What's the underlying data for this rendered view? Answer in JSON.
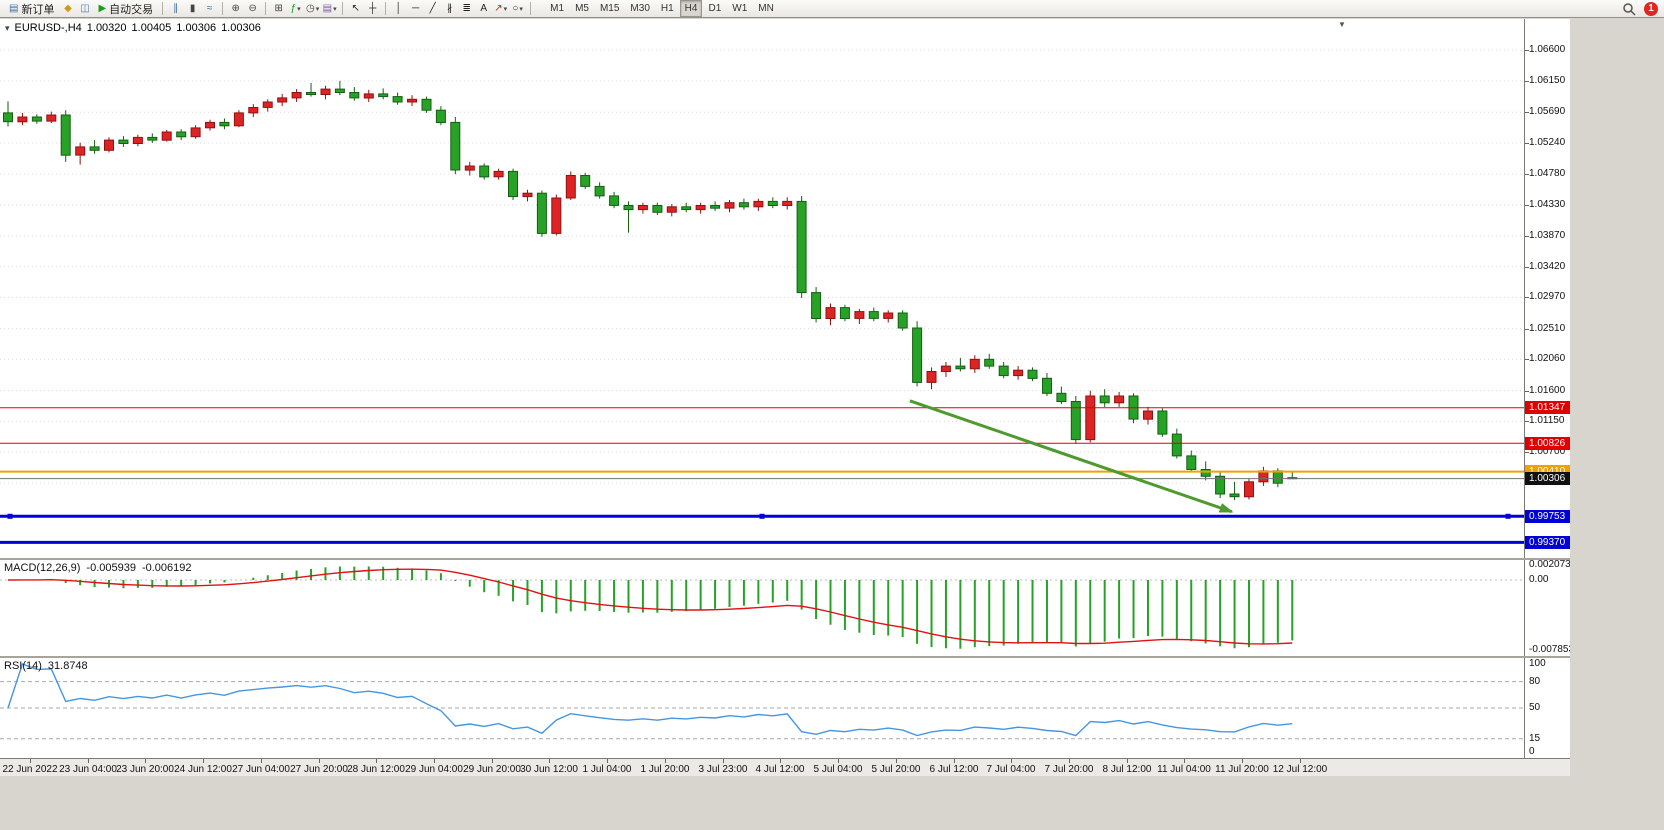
{
  "colors": {
    "bull": "#dd2323",
    "bull_dark": "#8f1212",
    "bear": "#27a227",
    "bear_dark": "#135f13",
    "grid": "#d9d9d9",
    "macd_hist": "#27a227",
    "macd_signal": "#e01212",
    "rsi": "#4596e0",
    "arrow": "#4e9a2e"
  },
  "icons": {
    "one_click": "▾",
    "shift_marker": "▼",
    "caret": "▾"
  },
  "toolbar": {
    "items": [
      {
        "type": "button",
        "name": "new-order-button",
        "label": "新订单",
        "glyph": "▤",
        "glyph_color": "#3a6ea5"
      },
      {
        "type": "icon",
        "name": "alerts-icon",
        "glyph": "◆",
        "glyph_color": "#d09a18"
      },
      {
        "type": "icon",
        "name": "market-depth-icon",
        "glyph": "◫",
        "glyph_color": "#4a7ab5"
      },
      {
        "type": "button",
        "name": "autotrading-button",
        "label": "自动交易",
        "glyph": "▶",
        "glyph_color": "#16a016"
      },
      {
        "type": "sep"
      },
      {
        "type": "icon",
        "name": "bar-chart-icon",
        "glyph": "∥",
        "glyph_color": "#3a6ea5"
      },
      {
        "type": "icon",
        "name": "candlestick-chart-icon",
        "glyph": "▮",
        "glyph_color": "#444444"
      },
      {
        "type": "icon",
        "name": "line-chart-icon",
        "glyph": "≈",
        "glyph_color": "#3a6ea5"
      },
      {
        "type": "sep"
      },
      {
        "type": "icon",
        "name": "zoom-in-icon",
        "glyph": "⊕",
        "glyph_color": "#444444"
      },
      {
        "type": "icon",
        "name": "zoom-out-icon",
        "glyph": "⊖",
        "glyph_color": "#444444"
      },
      {
        "type": "sep"
      },
      {
        "type": "icon",
        "name": "tile-windows-icon",
        "glyph": "⊞",
        "glyph_color": "#444444"
      },
      {
        "type": "icon",
        "name": "indicators-icon",
        "glyph": "ƒ",
        "glyph_color": "#16a016",
        "caret": true
      },
      {
        "type": "icon",
        "name": "periods-icon",
        "glyph": "◷",
        "glyph_color": "#444444",
        "caret": true
      },
      {
        "type": "icon",
        "name": "templates-icon",
        "glyph": "▤",
        "glyph_color": "#7a5aa0",
        "caret": true
      },
      {
        "type": "sep"
      },
      {
        "type": "icon",
        "name": "cursor-icon",
        "glyph": "↖",
        "glyph_color": "#222222"
      },
      {
        "type": "icon",
        "name": "crosshair-icon",
        "glyph": "┼",
        "glyph_color": "#222222"
      },
      {
        "type": "sep"
      },
      {
        "type": "icon",
        "name": "vertical-line-icon",
        "glyph": "│",
        "glyph_color": "#222222"
      },
      {
        "type": "icon",
        "name": "horizontal-line-icon",
        "glyph": "─",
        "glyph_color": "#222222"
      },
      {
        "type": "icon",
        "name": "trendline-icon",
        "glyph": "╱",
        "glyph_color": "#222222"
      },
      {
        "type": "icon",
        "name": "channel-icon",
        "glyph": "∦",
        "glyph_color": "#222222"
      },
      {
        "type": "icon",
        "name": "fibonacci-icon",
        "glyph": "≣",
        "glyph_color": "#222222"
      },
      {
        "type": "icon",
        "name": "text-icon",
        "glyph": "A",
        "glyph_color": "#222222"
      },
      {
        "type": "icon",
        "name": "arrows-icon",
        "glyph": "↗",
        "glyph_color": "#bb2222",
        "caret": true
      },
      {
        "type": "icon",
        "name": "shapes-icon",
        "glyph": "○",
        "glyph_color": "#222222",
        "caret": true
      },
      {
        "type": "sep"
      }
    ],
    "timeframes": [
      "M1",
      "M5",
      "M15",
      "M30",
      "H1",
      "H4",
      "D1",
      "W1",
      "MN"
    ],
    "active_timeframe": "H4",
    "notification_count": "1"
  },
  "chart": {
    "symbol_header": "EURUSD-,H4",
    "ohlc": {
      "open": "1.00320",
      "high": "1.00405",
      "low": "1.00306",
      "close": "1.00306"
    }
  },
  "macd": {
    "name": "MACD(12,26,9)",
    "value_main": "-0.005939",
    "value_signal": "-0.006192",
    "axis_labels": [
      "0.002073",
      "0.00",
      "-0.007853"
    ]
  },
  "rsi": {
    "name": "RSI(14)",
    "value": "31.8748",
    "axis_labels": [
      100,
      80,
      50,
      15,
      0
    ],
    "levels": [
      80,
      50,
      15
    ]
  },
  "chart_data": {
    "type": "candlestick",
    "symbol": "EURUSD-",
    "timeframe": "H4",
    "ohlc_header": [
      1.0032,
      1.00405,
      1.00306,
      1.00306
    ],
    "y_tick_labels": [
      "1.06600",
      "1.06150",
      "1.05690",
      "1.05240",
      "1.04780",
      "1.04330",
      "1.03870",
      "1.03420",
      "1.02970",
      "1.02510",
      "1.02060",
      "1.01600",
      "1.01150",
      "1.00700",
      "1.00240"
    ],
    "x_tick_labels": [
      "22 Jun 2022",
      "23 Jun 04:00",
      "23 Jun 20:00",
      "24 Jun 12:00",
      "27 Jun 04:00",
      "27 Jun 20:00",
      "28 Jun 12:00",
      "29 Jun 04:00",
      "29 Jun 20:00",
      "30 Jun 12:00",
      "1 Jul 04:00",
      "1 Jul 20:00",
      "3 Jul 23:00",
      "4 Jul 12:00",
      "5 Jul 04:00",
      "5 Jul 20:00",
      "6 Jul 12:00",
      "7 Jul 04:00",
      "7 Jul 20:00",
      "8 Jul 12:00",
      "11 Jul 04:00",
      "11 Jul 20:00",
      "12 Jul 12:00"
    ],
    "candles": [
      [
        1.0568,
        1.0585,
        1.0548,
        1.0555
      ],
      [
        1.0555,
        1.0568,
        1.055,
        1.0562
      ],
      [
        1.0562,
        1.0566,
        1.0552,
        1.0556
      ],
      [
        1.0556,
        1.057,
        1.0553,
        1.0565
      ],
      [
        1.0565,
        1.0572,
        1.0496,
        1.0506
      ],
      [
        1.0506,
        1.0524,
        1.0492,
        1.0518
      ],
      [
        1.0518,
        1.0528,
        1.0508,
        1.0513
      ],
      [
        1.0513,
        1.0532,
        1.051,
        1.0528
      ],
      [
        1.0528,
        1.0534,
        1.0518,
        1.0523
      ],
      [
        1.0523,
        1.0536,
        1.0519,
        1.0532
      ],
      [
        1.0532,
        1.0538,
        1.0524,
        1.0528
      ],
      [
        1.0528,
        1.0543,
        1.0526,
        1.054
      ],
      [
        1.054,
        1.0544,
        1.0528,
        1.0533
      ],
      [
        1.0533,
        1.055,
        1.053,
        1.0546
      ],
      [
        1.0546,
        1.0558,
        1.0542,
        1.0554
      ],
      [
        1.0554,
        1.056,
        1.0544,
        1.0549
      ],
      [
        1.0549,
        1.0572,
        1.0547,
        1.0568
      ],
      [
        1.0568,
        1.0581,
        1.0562,
        1.0576
      ],
      [
        1.0576,
        1.0588,
        1.057,
        1.0584
      ],
      [
        1.0584,
        1.0596,
        1.0578,
        1.059
      ],
      [
        1.059,
        1.0603,
        1.0584,
        1.0598
      ],
      [
        1.0598,
        1.0612,
        1.0592,
        1.0595
      ],
      [
        1.0595,
        1.0608,
        1.0588,
        1.0603
      ],
      [
        1.0603,
        1.0615,
        1.0594,
        1.0598
      ],
      [
        1.0598,
        1.0606,
        1.0586,
        1.059
      ],
      [
        1.059,
        1.0602,
        1.0584,
        1.0596
      ],
      [
        1.0596,
        1.0604,
        1.0588,
        1.0592
      ],
      [
        1.0592,
        1.0598,
        1.058,
        1.0584
      ],
      [
        1.0584,
        1.0594,
        1.0578,
        1.0588
      ],
      [
        1.0588,
        1.0592,
        1.0568,
        1.0572
      ],
      [
        1.0572,
        1.0578,
        1.055,
        1.0554
      ],
      [
        1.0554,
        1.0562,
        1.0478,
        1.0484
      ],
      [
        1.0484,
        1.0496,
        1.0476,
        1.049
      ],
      [
        1.049,
        1.0494,
        1.047,
        1.0474
      ],
      [
        1.0474,
        1.0486,
        1.047,
        1.0482
      ],
      [
        1.0482,
        1.0486,
        1.044,
        1.0445
      ],
      [
        1.0445,
        1.0455,
        1.0438,
        1.045
      ],
      [
        1.045,
        1.0454,
        1.0386,
        1.0391
      ],
      [
        1.0391,
        1.0448,
        1.0388,
        1.0443
      ],
      [
        1.0443,
        1.0482,
        1.044,
        1.0476
      ],
      [
        1.0476,
        1.048,
        1.0456,
        1.046
      ],
      [
        1.046,
        1.0466,
        1.0442,
        1.0446
      ],
      [
        1.0446,
        1.0452,
        1.0428,
        1.0432
      ],
      [
        1.0432,
        1.0438,
        1.0392,
        1.0426
      ],
      [
        1.0426,
        1.0436,
        1.042,
        1.0432
      ],
      [
        1.0432,
        1.0436,
        1.0418,
        1.0422
      ],
      [
        1.0422,
        1.0434,
        1.0416,
        1.043
      ],
      [
        1.043,
        1.0436,
        1.0422,
        1.0426
      ],
      [
        1.0426,
        1.0436,
        1.042,
        1.0432
      ],
      [
        1.0432,
        1.0438,
        1.0424,
        1.0428
      ],
      [
        1.0428,
        1.044,
        1.0422,
        1.0436
      ],
      [
        1.0436,
        1.0442,
        1.0426,
        1.043
      ],
      [
        1.043,
        1.0442,
        1.0424,
        1.0438
      ],
      [
        1.0438,
        1.0444,
        1.0428,
        1.0432
      ],
      [
        1.0432,
        1.0444,
        1.0426,
        1.0438
      ],
      [
        1.0438,
        1.0446,
        1.0296,
        1.0304
      ],
      [
        1.0304,
        1.0312,
        1.026,
        1.0266
      ],
      [
        1.0266,
        1.0288,
        1.0256,
        1.0282
      ],
      [
        1.0282,
        1.0286,
        1.0262,
        1.0266
      ],
      [
        1.0266,
        1.028,
        1.0258,
        1.0276
      ],
      [
        1.0276,
        1.0282,
        1.0262,
        1.0266
      ],
      [
        1.0266,
        1.0278,
        1.026,
        1.0274
      ],
      [
        1.0274,
        1.0278,
        1.0248,
        1.0252
      ],
      [
        1.0252,
        1.0262,
        1.0166,
        1.0172
      ],
      [
        1.0172,
        1.0194,
        1.0162,
        1.0188
      ],
      [
        1.0188,
        1.0202,
        1.018,
        1.0196
      ],
      [
        1.0196,
        1.0208,
        1.0188,
        1.0192
      ],
      [
        1.0192,
        1.0212,
        1.0186,
        1.0206
      ],
      [
        1.0206,
        1.0214,
        1.0192,
        1.0196
      ],
      [
        1.0196,
        1.0202,
        1.0178,
        1.0182
      ],
      [
        1.0182,
        1.0196,
        1.0176,
        1.019
      ],
      [
        1.019,
        1.0194,
        1.0174,
        1.0178
      ],
      [
        1.0178,
        1.0186,
        1.0152,
        1.0156
      ],
      [
        1.0156,
        1.0166,
        1.014,
        1.0144
      ],
      [
        1.0144,
        1.0152,
        1.0082,
        1.0088
      ],
      [
        1.0088,
        1.016,
        1.0084,
        1.0152
      ],
      [
        1.0152,
        1.0162,
        1.0136,
        1.0142
      ],
      [
        1.0142,
        1.0158,
        1.0136,
        1.0152
      ],
      [
        1.0152,
        1.0156,
        1.0112,
        1.0118
      ],
      [
        1.0118,
        1.0136,
        1.011,
        1.013
      ],
      [
        1.013,
        1.0134,
        1.0092,
        1.0096
      ],
      [
        1.0096,
        1.0104,
        1.006,
        1.0064
      ],
      [
        1.0064,
        1.0072,
        1.004,
        1.0044
      ],
      [
        1.0044,
        1.0056,
        1.0028,
        1.0034
      ],
      [
        1.0034,
        1.004,
        1.0002,
        1.0008
      ],
      [
        1.0008,
        1.0026,
        0.9999,
        1.0004
      ],
      [
        1.0004,
        1.003,
        1.0,
        1.0026
      ],
      [
        1.0026,
        1.0048,
        1.002,
        1.0042
      ],
      [
        1.0042,
        1.0046,
        1.0018,
        1.0024
      ],
      [
        1.0032,
        1.00405,
        1.00306,
        1.00306
      ]
    ],
    "price_levels": [
      {
        "name": "resistance-line-1",
        "label": "1.01347",
        "price": 1.01347,
        "line_color": "#e00000",
        "tag_color": "#e00000",
        "line_width": 1
      },
      {
        "name": "resistance-line-2",
        "label": "1.00826",
        "price": 1.00826,
        "line_color": "#e00000",
        "tag_color": "#e00000",
        "line_width": 1
      },
      {
        "name": "orange-level-line",
        "label": "1.00410",
        "price": 1.0041,
        "line_color": "#f0a000",
        "tag_color": "#f0a000",
        "line_width": 2
      },
      {
        "name": "bid-price-line",
        "label": "1.00306",
        "price": 1.00306,
        "line_color": "#707070",
        "tag_color": "#111111",
        "line_width": 1
      },
      {
        "name": "support-line-1",
        "label": "0.99753",
        "price": 0.99753,
        "line_color": "#0000d8",
        "tag_color": "#0000d8",
        "line_width": 3,
        "handles": true
      },
      {
        "name": "support-line-2",
        "label": "0.99370",
        "price": 0.9937,
        "line_color": "#0000d8",
        "tag_color": "#0000d8",
        "line_width": 3
      }
    ],
    "annotations": [
      {
        "type": "arrow",
        "name": "trend-arrow",
        "from_bar": 62.5,
        "from_price": 1.0145,
        "to_bar": 84.8,
        "to_price": 0.9982,
        "color": "#4e9a2e"
      }
    ],
    "indicators": [
      {
        "name": "MACD",
        "params": [
          12,
          26,
          9
        ],
        "last_values": [
          -0.005939,
          -0.006192
        ],
        "axis_range": [
          0.002073,
          -0.007853
        ]
      },
      {
        "name": "RSI",
        "params": [
          14
        ],
        "last_value": 31.8748,
        "levels": [
          80,
          50,
          15
        ],
        "axis_range": [
          0,
          100
        ]
      }
    ]
  }
}
